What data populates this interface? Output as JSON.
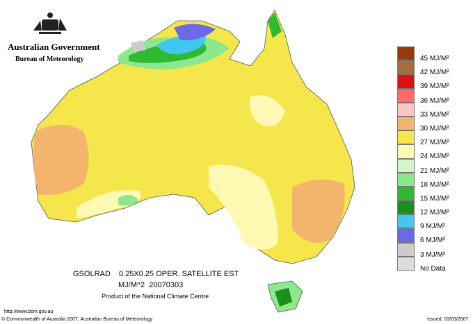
{
  "header": {
    "title": "Australian Government",
    "subtitle": "Bureau of Meteorology"
  },
  "legend": [
    {
      "label": "45 MJ/M²",
      "color": "#9a3a0c"
    },
    {
      "label": "42 MJ/M²",
      "color": "#a86a40"
    },
    {
      "label": "39 MJ/M²",
      "color": "#dd1010"
    },
    {
      "label": "36 MJ/M²",
      "color": "#ff6a6a"
    },
    {
      "label": "33 MJ/M²",
      "color": "#ffc4c4"
    },
    {
      "label": "30 MJ/M²",
      "color": "#f3b46c"
    },
    {
      "label": "27 MJ/M²",
      "color": "#f5e64c"
    },
    {
      "label": "24 MJ/M²",
      "color": "#fff9b4"
    },
    {
      "label": "21 MJ/M²",
      "color": "#d4f5cc"
    },
    {
      "label": "18 MJ/M²",
      "color": "#8ce88c"
    },
    {
      "label": "15 MJ/M²",
      "color": "#2fba2f"
    },
    {
      "label": "12 MJ/M²",
      "color": "#1c8e1c"
    },
    {
      "label": "9 MJ/M²",
      "color": "#40c8f0"
    },
    {
      "label": "6 MJ/M²",
      "color": "#6a6ae8"
    },
    {
      "label": "3 MJ/M²",
      "color": "#cccccc"
    },
    {
      "label": "No Data",
      "color": "#dddddd"
    }
  ],
  "caption": {
    "line1": "GSOLRAD    0.25X0.25 OPER. SATELLITE EST",
    "line2": "MJ/M^2  20070303",
    "line3": "Product of the National Climate Centre"
  },
  "footer": {
    "url": "http://www.bom.gov.au",
    "copyright": "© Commonwealth of Australia 2007, Australian Bureau of Meteorology",
    "issued": "Issued: 03/03/2007"
  }
}
